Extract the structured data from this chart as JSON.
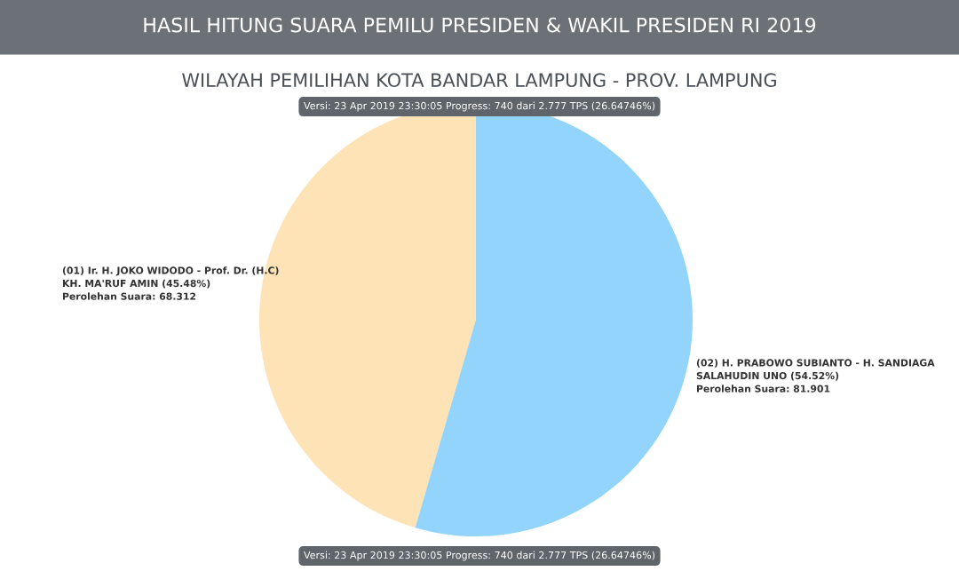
{
  "chart_data": {
    "type": "pie",
    "title": "HASIL HITUNG SUARA PEMILU PRESIDEN & WAKIL PRESIDEN RI 2019",
    "subtitle": "WILAYAH PEMILIHAN KOTA BANDAR LAMPUNG - PROV. LAMPUNG",
    "categories": [
      "(01) Ir. H. JOKO WIDODO - Prof. Dr. (H.C)\nKH. MA'RUF AMIN (45.48%)\nPerolehan Suara: 68.312",
      "(02) H. PRABOWO SUBIANTO - H. SANDIAGA\nSALAHUDIN UNO (54.52%)\nPerolehan Suara: 81.901"
    ],
    "values": [
      45.48,
      54.52
    ],
    "colors": [
      "#fde3b6",
      "#92d4fc"
    ],
    "annotations": [
      "Versi: 23 Apr 2019 23:30:05 Progress: 740 dari 2.777 TPS (26.64746%)",
      "Versi: 23 Apr 2019 23:30:05 Progress: 740 dari 2.777 TPS (26.64746%)"
    ]
  }
}
